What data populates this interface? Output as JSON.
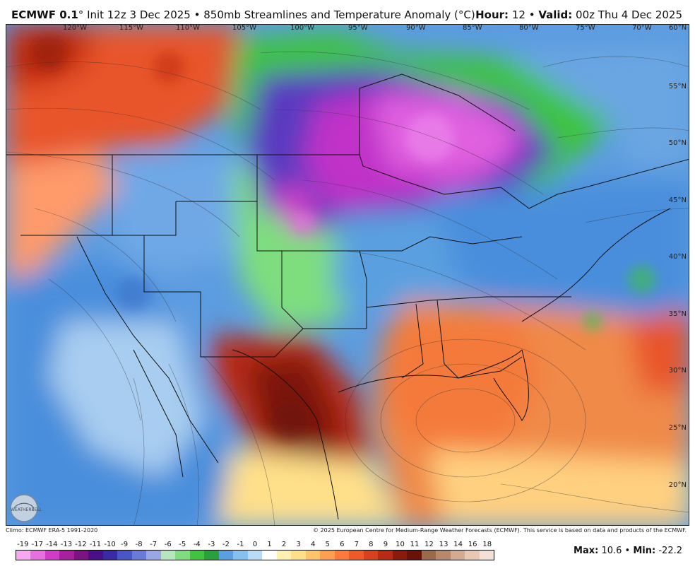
{
  "header": {
    "model": "ECMWF 0.1",
    "degree": "°",
    "init": "Init 12z 3 Dec 2025",
    "bullet": "•",
    "product": "850mb Streamlines and Temperature Anomaly (°C)",
    "hour_label": "Hour:",
    "hour_value": "12",
    "valid_label": "Valid:",
    "valid_value": "00z Thu 4 Dec 2025"
  },
  "longitudes": [
    "120°W",
    "115°W",
    "110°W",
    "105°W",
    "100°W",
    "95°W",
    "90°W",
    "85°W",
    "80°W",
    "75°W",
    "70°W",
    "60°N"
  ],
  "latitudes": [
    "55°N",
    "50°N",
    "45°N",
    "40°N",
    "35°N",
    "30°N",
    "25°N",
    "20°N"
  ],
  "footer": {
    "climo": "Climo: ECMWF ERA-5 1991-2020",
    "copyright": "© 2025 European Centre for Medium-Range Weather Forecasts (ECMWF). This service is based on data and products of the ECMWF."
  },
  "logo_text": "WEATHERBELL",
  "scale": {
    "labels": [
      "-19",
      "-17",
      "-14",
      "-13",
      "-12",
      "-11",
      "-10",
      "-9",
      "-8",
      "-7",
      "-6",
      "-5",
      "-4",
      "-3",
      "-2",
      "-1",
      "0",
      "1",
      "2",
      "3",
      "4",
      "5",
      "6",
      "7",
      "8",
      "9",
      "10",
      "11",
      "12",
      "13",
      "14",
      "16",
      "18"
    ],
    "colors": [
      "#f7a8f0",
      "#e86fe0",
      "#d03cc8",
      "#a8209e",
      "#7a1480",
      "#4a108a",
      "#3a2aa8",
      "#4a56c8",
      "#6a7ad8",
      "#9aa6e6",
      "#b6e6c0",
      "#7ede7e",
      "#3ec43e",
      "#2aa03a",
      "#5aa0e0",
      "#86c0ee",
      "#b8dcf6",
      "#ffffff",
      "#fff2b0",
      "#ffe08a",
      "#ffc46a",
      "#ffa050",
      "#ff7a3a",
      "#f05a28",
      "#d8401e",
      "#b82a14",
      "#8c1a0c",
      "#6a1208",
      "#9a6a4a",
      "#b8886a",
      "#d4aa90",
      "#e8c8b4",
      "#f4e0d4"
    ]
  },
  "stats": {
    "max_label": "Max:",
    "max_value": "10.6",
    "min_label": "Min:",
    "min_value": "-22.2"
  }
}
